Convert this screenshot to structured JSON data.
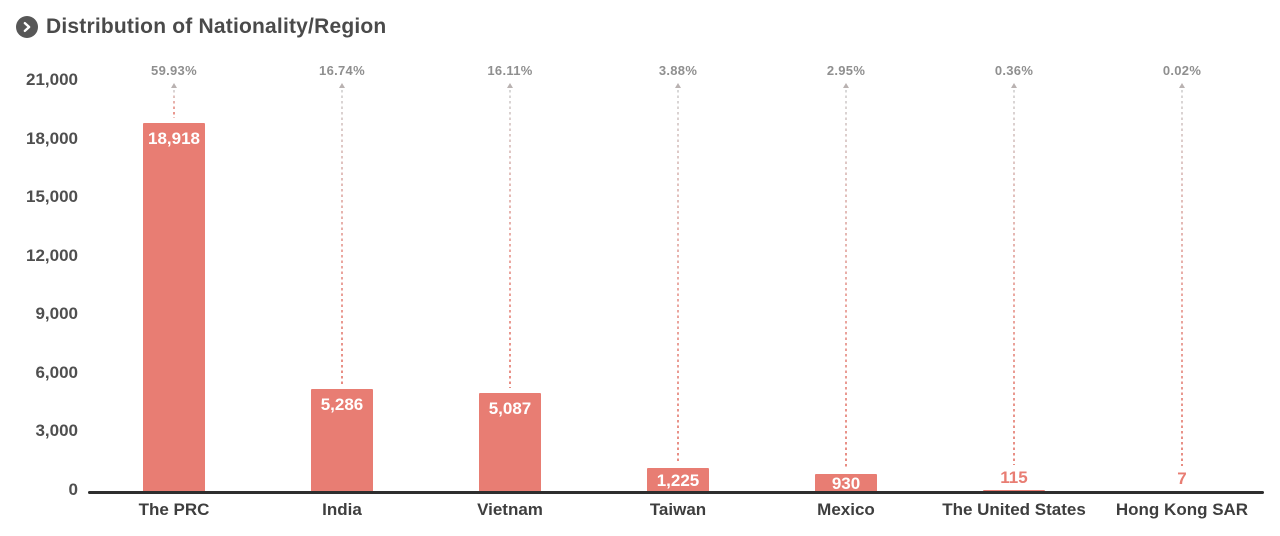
{
  "header": {
    "title": "Distribution of Nationality/Region",
    "icon": "chevron-right-circle"
  },
  "colors": {
    "bar": "#e87d73",
    "bar_value_text": "#ffffff",
    "small_value_text": "#e87d73",
    "percent_text": "#8f8f8f",
    "axis_line": "#2e2e2e",
    "y_tick_text": "#4f4f4f",
    "x_label_text": "#3e3e3e",
    "title_text": "#4a4a4a",
    "icon_bg": "#575757"
  },
  "chart_data": {
    "type": "bar",
    "title": "Distribution of Nationality/Region",
    "xlabel": "",
    "ylabel": "",
    "categories": [
      "The PRC",
      "India",
      "Vietnam",
      "Taiwan",
      "Mexico",
      "The United States",
      "Hong Kong SAR"
    ],
    "values": [
      18918,
      5286,
      5087,
      1225,
      930,
      115,
      7
    ],
    "value_labels": [
      "18,918",
      "5,286",
      "5,087",
      "1,225",
      "930",
      "115",
      "7"
    ],
    "percent_labels": [
      "59.93%",
      "16.74%",
      "16.11%",
      "3.88%",
      "2.95%",
      "0.36%",
      "0.02%"
    ],
    "ylim": [
      0,
      21000
    ],
    "y_ticks": [
      0,
      3000,
      6000,
      9000,
      12000,
      15000,
      18000,
      21000
    ],
    "y_tick_labels": [
      "0",
      "3,000",
      "6,000",
      "9,000",
      "12,000",
      "15,000",
      "18,000",
      "21,000"
    ],
    "grid": false,
    "legend": null
  }
}
